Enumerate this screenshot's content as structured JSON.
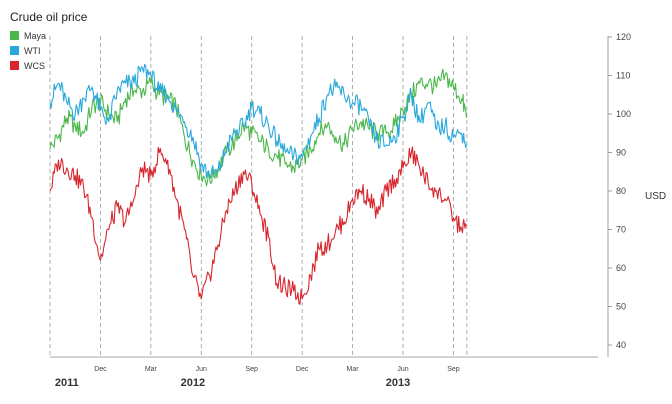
{
  "chart_data": {
    "type": "line",
    "title": "Crude oil price",
    "ylabel": "USD",
    "ylim": [
      40,
      120
    ],
    "yticks": [
      40,
      50,
      60,
      70,
      80,
      90,
      100,
      110,
      120
    ],
    "xlim": [
      0,
      32.6
    ],
    "x_unit": "months since 2011-09-01",
    "month_markers": [
      {
        "x": 0,
        "label": ""
      },
      {
        "x": 3,
        "label": "Dec"
      },
      {
        "x": 6,
        "label": "Mar"
      },
      {
        "x": 9,
        "label": "Jun"
      },
      {
        "x": 12,
        "label": "Sep"
      },
      {
        "x": 15,
        "label": "Dec"
      },
      {
        "x": 18,
        "label": "Mar"
      },
      {
        "x": 21,
        "label": "Jun"
      },
      {
        "x": 24,
        "label": "Sep"
      },
      {
        "x": 24.8,
        "label": ""
      }
    ],
    "year_labels": [
      {
        "x": 1,
        "label": "2011"
      },
      {
        "x": 8.5,
        "label": "2012"
      },
      {
        "x": 20.7,
        "label": "2013"
      }
    ],
    "series": [
      {
        "name": "Maya",
        "color": "#4bb84b",
        "x": [
          0,
          0.5,
          1,
          1.5,
          2,
          2.5,
          3,
          3.5,
          4,
          4.5,
          5,
          5.5,
          6,
          6.5,
          7,
          7.5,
          8,
          8.5,
          9,
          9.5,
          10,
          10.5,
          11,
          11.5,
          12,
          12.5,
          13,
          13.5,
          14,
          14.5,
          15,
          15.5,
          16,
          16.5,
          17,
          17.5,
          18,
          18.5,
          19,
          19.5,
          20,
          20.5,
          21,
          21.5,
          22,
          22.5,
          23,
          23.5,
          24,
          24.5,
          24.8
        ],
        "values": [
          91,
          94,
          99,
          97,
          95,
          102,
          103,
          100,
          98,
          104,
          106,
          106,
          108,
          105,
          104,
          102,
          94,
          88,
          84,
          83,
          86,
          90,
          93,
          97,
          95,
          93,
          91,
          89,
          87,
          86,
          88,
          91,
          95,
          97,
          94,
          92,
          96,
          98,
          96,
          95,
          95,
          97,
          101,
          105,
          108,
          108,
          107,
          110,
          107,
          104,
          99
        ]
      },
      {
        "name": "WTI",
        "color": "#2aa8dc",
        "x": [
          0,
          0.5,
          1,
          1.5,
          2,
          2.5,
          3,
          3.5,
          4,
          4.5,
          5,
          5.5,
          6,
          6.5,
          7,
          7.5,
          8,
          8.5,
          9,
          9.5,
          10,
          10.5,
          11,
          11.5,
          12,
          12.5,
          13,
          13.5,
          14,
          14.5,
          15,
          15.5,
          16,
          16.5,
          17,
          17.5,
          18,
          18.5,
          19,
          19.5,
          20,
          20.5,
          21,
          21.5,
          22,
          22.5,
          23,
          23.5,
          24,
          24.5,
          24.8
        ],
        "values": [
          103,
          108,
          103,
          100,
          104,
          107,
          101,
          98,
          106,
          108,
          108,
          112,
          110,
          106,
          105,
          101,
          98,
          94,
          87,
          84,
          85,
          91,
          95,
          97,
          102,
          100,
          97,
          93,
          90,
          89,
          89,
          94,
          99,
          105,
          107,
          105,
          103,
          102,
          97,
          93,
          92,
          94,
          99,
          105,
          98,
          103,
          96,
          97,
          94,
          95,
          92
        ]
      },
      {
        "name": "WCS",
        "color": "#d8262d",
        "x": [
          0,
          0.5,
          1,
          1.5,
          2,
          2.5,
          3,
          3.5,
          4,
          4.5,
          5,
          5.5,
          6,
          6.5,
          7,
          7.5,
          8,
          8.5,
          9,
          9.5,
          10,
          10.5,
          11,
          11.5,
          12,
          12.5,
          13,
          13.5,
          14,
          14.5,
          15,
          15.5,
          16,
          16.5,
          17,
          17.5,
          18,
          18.5,
          19,
          19.5,
          20,
          20.5,
          21,
          21.5,
          22,
          22.5,
          23,
          23.5,
          24,
          24.5,
          24.8
        ],
        "values": [
          80,
          88,
          86,
          84,
          81,
          73,
          62,
          70,
          76,
          72,
          78,
          86,
          84,
          90,
          88,
          78,
          70,
          58,
          52,
          58,
          66,
          75,
          80,
          85,
          82,
          74,
          68,
          56,
          55,
          54,
          52,
          58,
          65,
          66,
          70,
          72,
          78,
          80,
          78,
          74,
          80,
          83,
          86,
          90,
          86,
          82,
          80,
          78,
          73,
          70,
          71
        ]
      }
    ]
  }
}
